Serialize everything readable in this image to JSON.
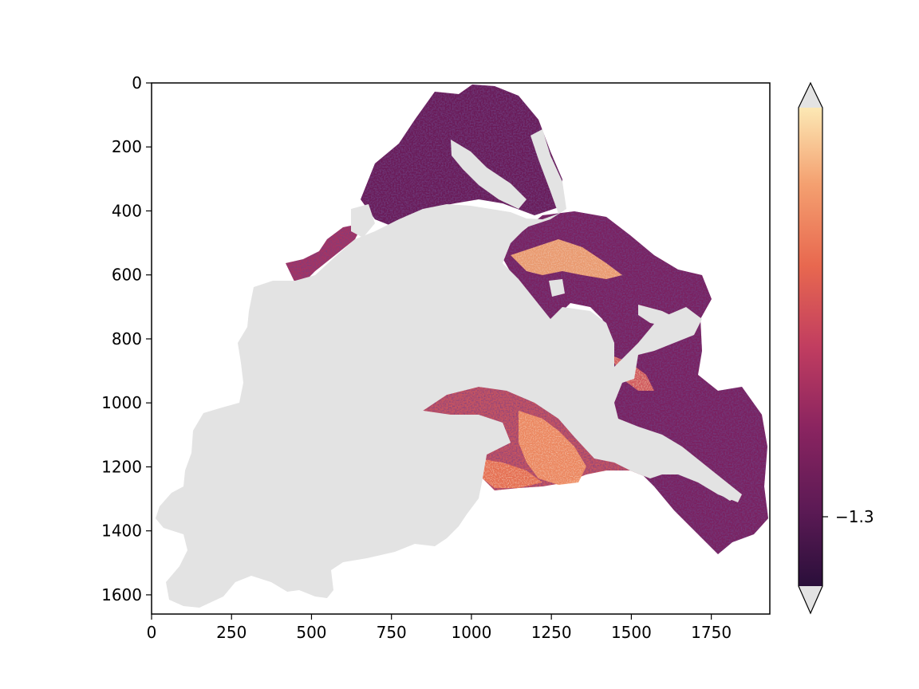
{
  "chart_data": {
    "type": "heatmap",
    "title": "",
    "xlabel": "",
    "ylabel": "",
    "image_extent": {
      "x": [
        0,
        1933
      ],
      "y": [
        1660,
        0
      ]
    },
    "xlim": [
      0,
      1933
    ],
    "ylim": [
      1660,
      0
    ],
    "y_inverted": true,
    "x_ticks": [
      0,
      250,
      500,
      750,
      1000,
      1250,
      1500,
      1750
    ],
    "x_tick_labels": [
      "0",
      "250",
      "500",
      "750",
      "1000",
      "1250",
      "1500",
      "1750"
    ],
    "y_ticks": [
      0,
      200,
      400,
      600,
      800,
      1000,
      1200,
      1400,
      1600
    ],
    "y_tick_labels": [
      "0",
      "200",
      "400",
      "600",
      "800",
      "1000",
      "1200",
      "1400",
      "1600"
    ],
    "grid": false,
    "colormap": "magma-like (dark purple to light yellow)",
    "colormap_stops": [
      "#2a0f3a",
      "#5c1a55",
      "#8a2460",
      "#c13d60",
      "#e8684f",
      "#f4a070",
      "#fce8b4"
    ],
    "masked_color": "#e3e3e3",
    "colorbar": {
      "extend": "both",
      "extend_color": "#e3e3e3",
      "ticks": [
        -1.3
      ],
      "tick_labels": [
        "−1.3"
      ],
      "tick_position_fraction": 0.145,
      "position": "right"
    }
  }
}
